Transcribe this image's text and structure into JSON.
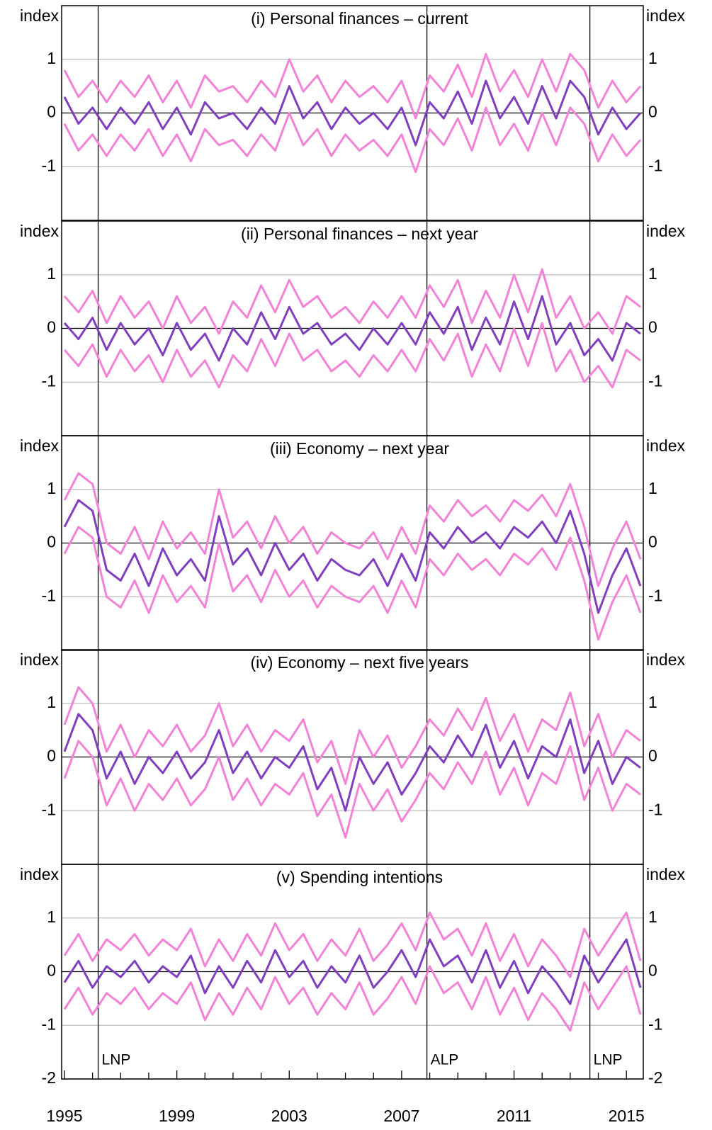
{
  "chart_data": [
    {
      "type": "line",
      "title": "(i) Personal finances – current",
      "ylabel": "index",
      "y2label": "index",
      "x": [
        1995,
        1995.5,
        1996,
        1996.5,
        1997,
        1997.5,
        1998,
        1998.5,
        1999,
        1999.5,
        2000,
        2000.5,
        2001,
        2001.5,
        2002,
        2002.5,
        2003,
        2003.5,
        2004,
        2004.5,
        2005,
        2005.5,
        2006,
        2006.5,
        2007,
        2007.5,
        2008,
        2008.5,
        2009,
        2009.5,
        2010,
        2010.5,
        2011,
        2011.5,
        2012,
        2012.5,
        2013,
        2013.5,
        2014,
        2014.5,
        2015,
        2015.5
      ],
      "xlim": [
        1994.9,
        2015.6
      ],
      "ylim": [
        -2,
        2
      ],
      "yticks": [
        -1,
        0,
        1
      ],
      "y2lim": [
        -2,
        2
      ],
      "y2ticks": [
        -1,
        0,
        1
      ],
      "grid": true,
      "vlines": [
        1996.2,
        2007.9,
        2013.7
      ],
      "series": [
        {
          "color": "#f283d6",
          "values": [
            0.8,
            0.3,
            0.6,
            0.2,
            0.6,
            0.3,
            0.7,
            0.2,
            0.6,
            0.1,
            0.7,
            0.4,
            0.5,
            0.2,
            0.6,
            0.3,
            1.0,
            0.4,
            0.7,
            0.2,
            0.6,
            0.3,
            0.5,
            0.2,
            0.6,
            -0.1,
            0.7,
            0.4,
            0.9,
            0.3,
            1.1,
            0.4,
            0.8,
            0.3,
            1.0,
            0.4,
            1.1,
            0.8,
            0.1,
            0.6,
            0.2,
            0.5
          ]
        },
        {
          "color": "#f283d6",
          "values": [
            -0.2,
            -0.7,
            -0.4,
            -0.8,
            -0.4,
            -0.7,
            -0.3,
            -0.8,
            -0.4,
            -0.9,
            -0.3,
            -0.6,
            -0.5,
            -0.8,
            -0.4,
            -0.7,
            0.0,
            -0.6,
            -0.3,
            -0.8,
            -0.4,
            -0.7,
            -0.5,
            -0.8,
            -0.4,
            -1.1,
            -0.3,
            -0.6,
            -0.1,
            -0.7,
            0.1,
            -0.6,
            -0.2,
            -0.7,
            0.0,
            -0.6,
            0.1,
            -0.2,
            -0.9,
            -0.4,
            -0.8,
            -0.5
          ]
        },
        {
          "color": "#7f3fbf",
          "values": [
            0.3,
            -0.2,
            0.1,
            -0.3,
            0.1,
            -0.2,
            0.2,
            -0.3,
            0.1,
            -0.4,
            0.2,
            -0.1,
            0.0,
            -0.3,
            0.1,
            -0.2,
            0.5,
            -0.1,
            0.2,
            -0.3,
            0.1,
            -0.2,
            0.0,
            -0.3,
            0.1,
            -0.6,
            0.2,
            -0.1,
            0.4,
            -0.2,
            0.6,
            -0.1,
            0.3,
            -0.2,
            0.5,
            -0.1,
            0.6,
            0.3,
            -0.4,
            0.1,
            -0.3,
            0.0
          ]
        }
      ]
    },
    {
      "type": "line",
      "title": "(ii) Personal finances – next year",
      "ylabel": "index",
      "y2label": "index",
      "x": [
        1995,
        1995.5,
        1996,
        1996.5,
        1997,
        1997.5,
        1998,
        1998.5,
        1999,
        1999.5,
        2000,
        2000.5,
        2001,
        2001.5,
        2002,
        2002.5,
        2003,
        2003.5,
        2004,
        2004.5,
        2005,
        2005.5,
        2006,
        2006.5,
        2007,
        2007.5,
        2008,
        2008.5,
        2009,
        2009.5,
        2010,
        2010.5,
        2011,
        2011.5,
        2012,
        2012.5,
        2013,
        2013.5,
        2014,
        2014.5,
        2015,
        2015.5
      ],
      "xlim": [
        1994.9,
        2015.6
      ],
      "ylim": [
        -2,
        2
      ],
      "yticks": [
        -1,
        0,
        1
      ],
      "y2lim": [
        -2,
        2
      ],
      "y2ticks": [
        -1,
        0,
        1
      ],
      "grid": true,
      "vlines": [
        1996.2,
        2007.9,
        2013.7
      ],
      "series": [
        {
          "color": "#f283d6",
          "values": [
            0.6,
            0.3,
            0.7,
            0.1,
            0.6,
            0.2,
            0.5,
            0.0,
            0.6,
            0.1,
            0.4,
            -0.1,
            0.5,
            0.2,
            0.8,
            0.3,
            0.9,
            0.4,
            0.6,
            0.2,
            0.4,
            0.1,
            0.5,
            0.2,
            0.6,
            0.2,
            0.8,
            0.4,
            0.9,
            0.1,
            0.7,
            0.2,
            1.0,
            0.3,
            1.1,
            0.2,
            0.6,
            0.0,
            0.3,
            -0.1,
            0.6,
            0.4
          ]
        },
        {
          "color": "#f283d6",
          "values": [
            -0.4,
            -0.7,
            -0.3,
            -0.9,
            -0.4,
            -0.8,
            -0.5,
            -1.0,
            -0.4,
            -0.9,
            -0.6,
            -1.1,
            -0.5,
            -0.8,
            -0.2,
            -0.7,
            -0.1,
            -0.6,
            -0.4,
            -0.8,
            -0.6,
            -0.9,
            -0.5,
            -0.8,
            -0.4,
            -0.8,
            -0.2,
            -0.6,
            -0.1,
            -0.9,
            -0.3,
            -0.8,
            0.0,
            -0.7,
            0.1,
            -0.8,
            -0.4,
            -1.0,
            -0.7,
            -1.1,
            -0.4,
            -0.6
          ]
        },
        {
          "color": "#7f3fbf",
          "values": [
            0.1,
            -0.2,
            0.2,
            -0.4,
            0.1,
            -0.3,
            0.0,
            -0.5,
            0.1,
            -0.4,
            -0.1,
            -0.6,
            0.0,
            -0.3,
            0.3,
            -0.2,
            0.4,
            -0.1,
            0.1,
            -0.3,
            -0.1,
            -0.4,
            0.0,
            -0.3,
            0.1,
            -0.3,
            0.3,
            -0.1,
            0.4,
            -0.4,
            0.2,
            -0.3,
            0.5,
            -0.2,
            0.6,
            -0.3,
            0.1,
            -0.5,
            -0.2,
            -0.6,
            0.1,
            -0.1
          ]
        }
      ]
    },
    {
      "type": "line",
      "title": "(iii) Economy – next year",
      "ylabel": "index",
      "y2label": "index",
      "x": [
        1995,
        1995.5,
        1996,
        1996.5,
        1997,
        1997.5,
        1998,
        1998.5,
        1999,
        1999.5,
        2000,
        2000.5,
        2001,
        2001.5,
        2002,
        2002.5,
        2003,
        2003.5,
        2004,
        2004.5,
        2005,
        2005.5,
        2006,
        2006.5,
        2007,
        2007.5,
        2008,
        2008.5,
        2009,
        2009.5,
        2010,
        2010.5,
        2011,
        2011.5,
        2012,
        2012.5,
        2013,
        2013.5,
        2014,
        2014.5,
        2015,
        2015.5
      ],
      "xlim": [
        1994.9,
        2015.6
      ],
      "ylim": [
        -2,
        2
      ],
      "yticks": [
        -1,
        0,
        1
      ],
      "y2lim": [
        -2,
        2
      ],
      "y2ticks": [
        -1,
        0,
        1
      ],
      "grid": true,
      "vlines": [
        1996.2,
        2007.9,
        2013.7
      ],
      "series": [
        {
          "color": "#f283d6",
          "values": [
            0.8,
            1.3,
            1.1,
            0.0,
            -0.2,
            0.3,
            -0.3,
            0.4,
            -0.1,
            0.2,
            -0.2,
            1.0,
            0.1,
            0.4,
            -0.1,
            0.5,
            0.0,
            0.3,
            -0.2,
            0.2,
            0.0,
            -0.1,
            0.2,
            -0.3,
            0.3,
            -0.2,
            0.7,
            0.4,
            0.8,
            0.5,
            0.7,
            0.4,
            0.8,
            0.6,
            0.9,
            0.5,
            1.1,
            0.3,
            -0.8,
            -0.1,
            0.4,
            -0.3
          ]
        },
        {
          "color": "#f283d6",
          "values": [
            -0.2,
            0.3,
            0.1,
            -1.0,
            -1.2,
            -0.7,
            -1.3,
            -0.6,
            -1.1,
            -0.8,
            -1.2,
            0.0,
            -0.9,
            -0.6,
            -1.1,
            -0.5,
            -1.0,
            -0.7,
            -1.2,
            -0.8,
            -1.0,
            -1.1,
            -0.8,
            -1.3,
            -0.7,
            -1.2,
            -0.3,
            -0.6,
            -0.2,
            -0.5,
            -0.3,
            -0.6,
            -0.2,
            -0.4,
            -0.1,
            -0.5,
            0.1,
            -0.7,
            -1.8,
            -1.1,
            -0.6,
            -1.3
          ]
        },
        {
          "color": "#7f3fbf",
          "values": [
            0.3,
            0.8,
            0.6,
            -0.5,
            -0.7,
            -0.2,
            -0.8,
            -0.1,
            -0.6,
            -0.3,
            -0.7,
            0.5,
            -0.4,
            -0.1,
            -0.6,
            0.0,
            -0.5,
            -0.2,
            -0.7,
            -0.3,
            -0.5,
            -0.6,
            -0.3,
            -0.8,
            -0.2,
            -0.7,
            0.2,
            -0.1,
            0.3,
            0.0,
            0.2,
            -0.1,
            0.3,
            0.1,
            0.4,
            0.0,
            0.6,
            -0.2,
            -1.3,
            -0.6,
            -0.1,
            -0.8
          ]
        }
      ]
    },
    {
      "type": "line",
      "title": "(iv) Economy – next five years",
      "ylabel": "index",
      "y2label": "index",
      "x": [
        1995,
        1995.5,
        1996,
        1996.5,
        1997,
        1997.5,
        1998,
        1998.5,
        1999,
        1999.5,
        2000,
        2000.5,
        2001,
        2001.5,
        2002,
        2002.5,
        2003,
        2003.5,
        2004,
        2004.5,
        2005,
        2005.5,
        2006,
        2006.5,
        2007,
        2007.5,
        2008,
        2008.5,
        2009,
        2009.5,
        2010,
        2010.5,
        2011,
        2011.5,
        2012,
        2012.5,
        2013,
        2013.5,
        2014,
        2014.5,
        2015,
        2015.5
      ],
      "xlim": [
        1994.9,
        2015.6
      ],
      "ylim": [
        -2,
        2
      ],
      "yticks": [
        -1,
        0,
        1
      ],
      "y2lim": [
        -2,
        2
      ],
      "y2ticks": [
        -1,
        0,
        1
      ],
      "grid": true,
      "vlines": [
        1996.2,
        2007.9,
        2013.7
      ],
      "series": [
        {
          "color": "#f283d6",
          "values": [
            0.6,
            1.3,
            1.0,
            0.1,
            0.6,
            0.0,
            0.5,
            0.2,
            0.6,
            0.1,
            0.4,
            1.0,
            0.2,
            0.6,
            0.1,
            0.5,
            0.3,
            0.7,
            -0.1,
            0.3,
            -0.5,
            0.5,
            0.0,
            0.4,
            -0.2,
            0.2,
            0.7,
            0.4,
            0.9,
            0.5,
            1.1,
            0.3,
            0.8,
            0.1,
            0.7,
            0.5,
            1.2,
            0.2,
            0.8,
            0.0,
            0.5,
            0.3
          ]
        },
        {
          "color": "#f283d6",
          "values": [
            -0.4,
            0.3,
            0.0,
            -0.9,
            -0.4,
            -1.0,
            -0.5,
            -0.8,
            -0.4,
            -0.9,
            -0.6,
            0.0,
            -0.8,
            -0.4,
            -0.9,
            -0.5,
            -0.7,
            -0.3,
            -1.1,
            -0.7,
            -1.5,
            -0.5,
            -1.0,
            -0.6,
            -1.2,
            -0.8,
            -0.3,
            -0.6,
            -0.1,
            -0.5,
            0.1,
            -0.7,
            -0.2,
            -0.9,
            -0.3,
            -0.5,
            0.2,
            -0.8,
            -0.2,
            -1.0,
            -0.5,
            -0.7
          ]
        },
        {
          "color": "#7f3fbf",
          "values": [
            0.1,
            0.8,
            0.5,
            -0.4,
            0.1,
            -0.5,
            0.0,
            -0.3,
            0.1,
            -0.4,
            -0.1,
            0.5,
            -0.3,
            0.1,
            -0.4,
            0.0,
            -0.2,
            0.2,
            -0.6,
            -0.2,
            -1.0,
            0.0,
            -0.5,
            -0.1,
            -0.7,
            -0.3,
            0.2,
            -0.1,
            0.4,
            0.0,
            0.6,
            -0.2,
            0.3,
            -0.4,
            0.2,
            0.0,
            0.7,
            -0.3,
            0.3,
            -0.5,
            0.0,
            -0.2
          ]
        }
      ]
    },
    {
      "type": "line",
      "title": "(v) Spending intentions",
      "ylabel": "index",
      "y2label": "index",
      "x": [
        1995,
        1995.5,
        1996,
        1996.5,
        1997,
        1997.5,
        1998,
        1998.5,
        1999,
        1999.5,
        2000,
        2000.5,
        2001,
        2001.5,
        2002,
        2002.5,
        2003,
        2003.5,
        2004,
        2004.5,
        2005,
        2005.5,
        2006,
        2006.5,
        2007,
        2007.5,
        2008,
        2008.5,
        2009,
        2009.5,
        2010,
        2010.5,
        2011,
        2011.5,
        2012,
        2012.5,
        2013,
        2013.5,
        2014,
        2014.5,
        2015,
        2015.5
      ],
      "xlim": [
        1994.9,
        2015.6
      ],
      "ylim": [
        -2,
        2
      ],
      "yticks": [
        -2,
        -1,
        0,
        1
      ],
      "y2lim": [
        -2,
        2
      ],
      "y2ticks": [
        -2,
        -1,
        0,
        1
      ],
      "grid": true,
      "vlines": [
        1996.2,
        2007.9,
        2013.7
      ],
      "vline_labels": [
        "LNP",
        "ALP",
        "LNP"
      ],
      "xticks": [
        1995,
        1999,
        2003,
        2007,
        2011,
        2015
      ],
      "xminor_ticks": [
        1996,
        1997,
        1998,
        2000,
        2001,
        2002,
        2004,
        2005,
        2006,
        2008,
        2009,
        2010,
        2012,
        2013,
        2014
      ],
      "series": [
        {
          "color": "#f283d6",
          "values": [
            0.3,
            0.7,
            0.2,
            0.6,
            0.4,
            0.7,
            0.3,
            0.6,
            0.4,
            0.8,
            0.1,
            0.6,
            0.2,
            0.7,
            0.3,
            0.9,
            0.4,
            0.7,
            0.2,
            0.6,
            0.3,
            0.8,
            0.2,
            0.5,
            0.9,
            0.4,
            1.1,
            0.6,
            0.8,
            0.3,
            0.9,
            0.2,
            0.7,
            0.1,
            0.6,
            0.3,
            -0.1,
            0.8,
            0.3,
            0.7,
            1.1,
            0.2
          ]
        },
        {
          "color": "#f283d6",
          "values": [
            -0.7,
            -0.3,
            -0.8,
            -0.4,
            -0.6,
            -0.3,
            -0.7,
            -0.4,
            -0.6,
            -0.2,
            -0.9,
            -0.4,
            -0.8,
            -0.3,
            -0.7,
            -0.1,
            -0.6,
            -0.3,
            -0.8,
            -0.4,
            -0.7,
            -0.2,
            -0.8,
            -0.5,
            -0.1,
            -0.6,
            0.1,
            -0.4,
            -0.2,
            -0.7,
            -0.1,
            -0.8,
            -0.3,
            -0.9,
            -0.4,
            -0.7,
            -1.1,
            -0.2,
            -0.7,
            -0.3,
            0.1,
            -0.8
          ]
        },
        {
          "color": "#7f3fbf",
          "values": [
            -0.2,
            0.2,
            -0.3,
            0.1,
            -0.1,
            0.2,
            -0.2,
            0.1,
            -0.1,
            0.3,
            -0.4,
            0.1,
            -0.3,
            0.2,
            -0.2,
            0.4,
            -0.1,
            0.2,
            -0.3,
            0.1,
            -0.2,
            0.3,
            -0.3,
            0.0,
            0.4,
            -0.1,
            0.6,
            0.1,
            0.3,
            -0.2,
            0.4,
            -0.3,
            0.2,
            -0.4,
            0.1,
            -0.2,
            -0.6,
            0.3,
            -0.2,
            0.2,
            0.6,
            -0.3
          ]
        }
      ]
    }
  ]
}
